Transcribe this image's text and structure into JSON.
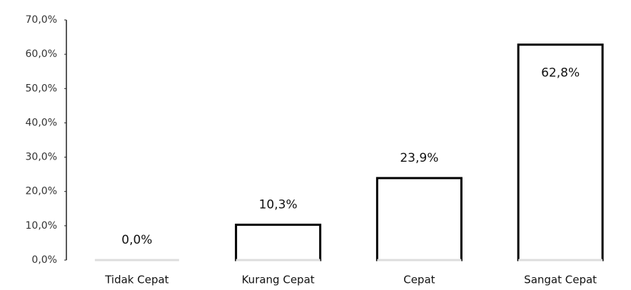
{
  "chart_data": {
    "type": "bar",
    "categories": [
      "Tidak Cepat",
      "Kurang Cepat",
      "Cepat",
      "Sangat Cepat"
    ],
    "values": [
      0,
      10.3,
      23.9,
      62.8
    ],
    "value_labels": [
      "0,0%",
      "10,3%",
      "23,9%",
      "62,8%"
    ],
    "color": "#000000",
    "ylim": [
      0,
      70
    ],
    "yticks": [
      {
        "value": 0,
        "label": "0,0%"
      },
      {
        "value": 10,
        "label": "10,0%"
      },
      {
        "value": 20,
        "label": "20,0%"
      },
      {
        "value": 30,
        "label": "30,0%"
      },
      {
        "value": 40,
        "label": "40,0%"
      },
      {
        "value": 50,
        "label": "50,0%"
      },
      {
        "value": 60,
        "label": "60,0%"
      },
      {
        "value": 70,
        "label": "70,0%"
      }
    ],
    "grid": false
  }
}
